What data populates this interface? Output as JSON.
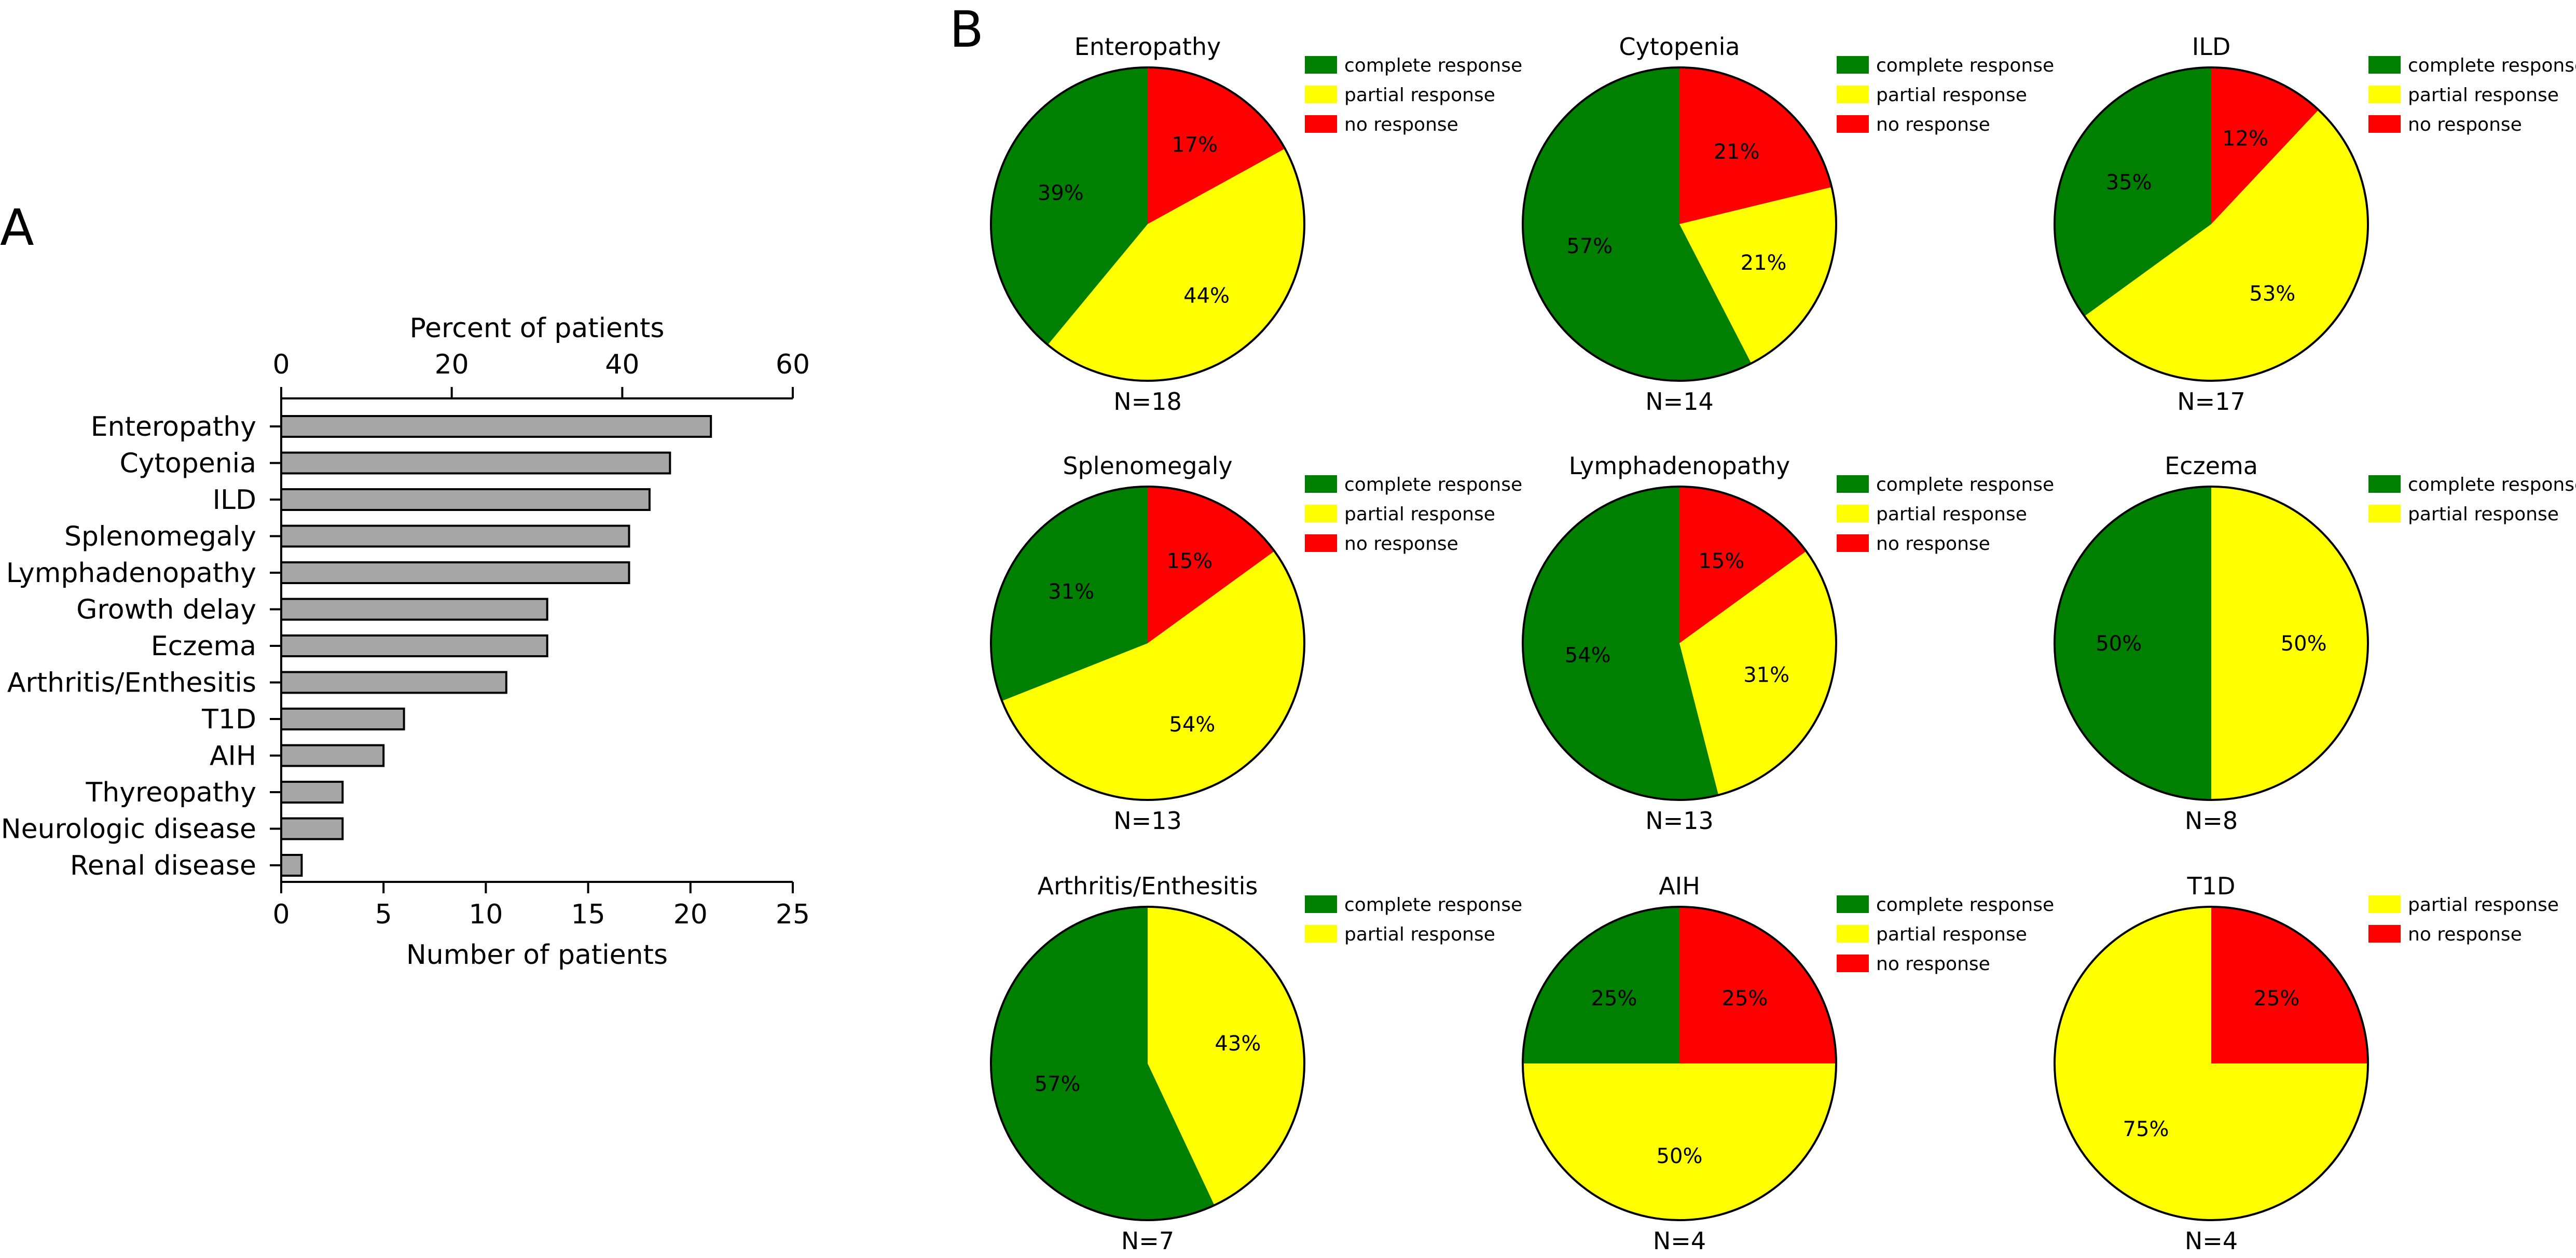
{
  "panels": {
    "a": "A",
    "b": "B"
  },
  "chart_data": [
    {
      "type": "bar",
      "orientation": "horizontal",
      "title": "",
      "categories": [
        "Enteropathy",
        "Cytopenia",
        "ILD",
        "Splenomegaly",
        "Lymphadenopathy",
        "Growth delay",
        "Eczema",
        "Arthritis/Enthesitis",
        "T1D",
        "AIH",
        "Thyreopathy",
        "Neurologic disease",
        "Renal disease"
      ],
      "values": [
        21,
        19,
        18,
        17,
        17,
        13,
        13,
        11,
        6,
        5,
        3,
        3,
        1
      ],
      "xlabel": "Number of patients",
      "xlim": [
        0,
        25
      ],
      "xticks": [
        "0",
        "5",
        "10",
        "15",
        "20",
        "25"
      ],
      "x2label": "Percent of patients",
      "x2lim": [
        0,
        60
      ],
      "x2ticks": [
        "0",
        "20",
        "40",
        "60"
      ],
      "bar_color": "#a6a6a6"
    },
    {
      "type": "pie",
      "title": "Enteropathy",
      "n_label": "N=18",
      "slices": [
        {
          "label": "no response",
          "value": 17,
          "text": "17%",
          "color": "#ff0000"
        },
        {
          "label": "partial response",
          "value": 44,
          "text": "44%",
          "color": "#ffff00"
        },
        {
          "label": "complete response",
          "value": 39,
          "text": "39%",
          "color": "#008000"
        }
      ],
      "legend": [
        {
          "label": "complete response",
          "color": "#008000"
        },
        {
          "label": "partial response",
          "color": "#ffff00"
        },
        {
          "label": "no response",
          "color": "#ff0000"
        }
      ]
    },
    {
      "type": "pie",
      "title": "Cytopenia",
      "n_label": "N=14",
      "slices": [
        {
          "label": "no response",
          "value": 21,
          "text": "21%",
          "color": "#ff0000"
        },
        {
          "label": "partial response",
          "value": 21,
          "text": "21%",
          "color": "#ffff00"
        },
        {
          "label": "complete response",
          "value": 57,
          "text": "57%",
          "color": "#008000"
        }
      ],
      "legend": [
        {
          "label": "complete response",
          "color": "#008000"
        },
        {
          "label": "partial response",
          "color": "#ffff00"
        },
        {
          "label": "no response",
          "color": "#ff0000"
        }
      ]
    },
    {
      "type": "pie",
      "title": "ILD",
      "n_label": "N=17",
      "slices": [
        {
          "label": "no response",
          "value": 12,
          "text": "12%",
          "color": "#ff0000"
        },
        {
          "label": "partial response",
          "value": 53,
          "text": "53%",
          "color": "#ffff00"
        },
        {
          "label": "complete response",
          "value": 35,
          "text": "35%",
          "color": "#008000"
        }
      ],
      "legend": [
        {
          "label": "complete response",
          "color": "#008000"
        },
        {
          "label": "partial response",
          "color": "#ffff00"
        },
        {
          "label": "no response",
          "color": "#ff0000"
        }
      ]
    },
    {
      "type": "pie",
      "title": "Splenomegaly",
      "n_label": "N=13",
      "slices": [
        {
          "label": "no response",
          "value": 15,
          "text": "15%",
          "color": "#ff0000"
        },
        {
          "label": "partial response",
          "value": 54,
          "text": "54%",
          "color": "#ffff00"
        },
        {
          "label": "complete response",
          "value": 31,
          "text": "31%",
          "color": "#008000"
        }
      ],
      "legend": [
        {
          "label": "complete response",
          "color": "#008000"
        },
        {
          "label": "partial response",
          "color": "#ffff00"
        },
        {
          "label": "no response",
          "color": "#ff0000"
        }
      ]
    },
    {
      "type": "pie",
      "title": "Lymphadenopathy",
      "n_label": "N=13",
      "slices": [
        {
          "label": "no response",
          "value": 15,
          "text": "15%",
          "color": "#ff0000"
        },
        {
          "label": "partial response",
          "value": 31,
          "text": "31%",
          "color": "#ffff00"
        },
        {
          "label": "complete response",
          "value": 54,
          "text": "54%",
          "color": "#008000"
        }
      ],
      "legend": [
        {
          "label": "complete response",
          "color": "#008000"
        },
        {
          "label": "partial response",
          "color": "#ffff00"
        },
        {
          "label": "no response",
          "color": "#ff0000"
        }
      ]
    },
    {
      "type": "pie",
      "title": "Eczema",
      "n_label": "N=8",
      "slices": [
        {
          "label": "partial response",
          "value": 50,
          "text": "50%",
          "color": "#ffff00"
        },
        {
          "label": "complete response",
          "value": 50,
          "text": "50%",
          "color": "#008000"
        }
      ],
      "legend": [
        {
          "label": "complete response",
          "color": "#008000"
        },
        {
          "label": "partial response",
          "color": "#ffff00"
        }
      ]
    },
    {
      "type": "pie",
      "title": "Arthritis/Enthesitis",
      "n_label": "N=7",
      "slices": [
        {
          "label": "partial response",
          "value": 43,
          "text": "43%",
          "color": "#ffff00"
        },
        {
          "label": "complete response",
          "value": 57,
          "text": "57%",
          "color": "#008000"
        }
      ],
      "legend": [
        {
          "label": "complete response",
          "color": "#008000"
        },
        {
          "label": "partial response",
          "color": "#ffff00"
        }
      ]
    },
    {
      "type": "pie",
      "title": "AIH",
      "n_label": "N=4",
      "slices": [
        {
          "label": "no response",
          "value": 25,
          "text": "25%",
          "color": "#ff0000"
        },
        {
          "label": "partial response",
          "value": 50,
          "text": "50%",
          "color": "#ffff00"
        },
        {
          "label": "complete response",
          "value": 25,
          "text": "25%",
          "color": "#008000"
        }
      ],
      "legend": [
        {
          "label": "complete response",
          "color": "#008000"
        },
        {
          "label": "partial response",
          "color": "#ffff00"
        },
        {
          "label": "no response",
          "color": "#ff0000"
        }
      ]
    },
    {
      "type": "pie",
      "title": "T1D",
      "n_label": "N=4",
      "slices": [
        {
          "label": "no response",
          "value": 25,
          "text": "25%",
          "color": "#ff0000"
        },
        {
          "label": "partial response",
          "value": 75,
          "text": "75%",
          "color": "#ffff00"
        }
      ],
      "legend": [
        {
          "label": "partial response",
          "color": "#ffff00"
        },
        {
          "label": "no response",
          "color": "#ff0000"
        }
      ]
    }
  ]
}
